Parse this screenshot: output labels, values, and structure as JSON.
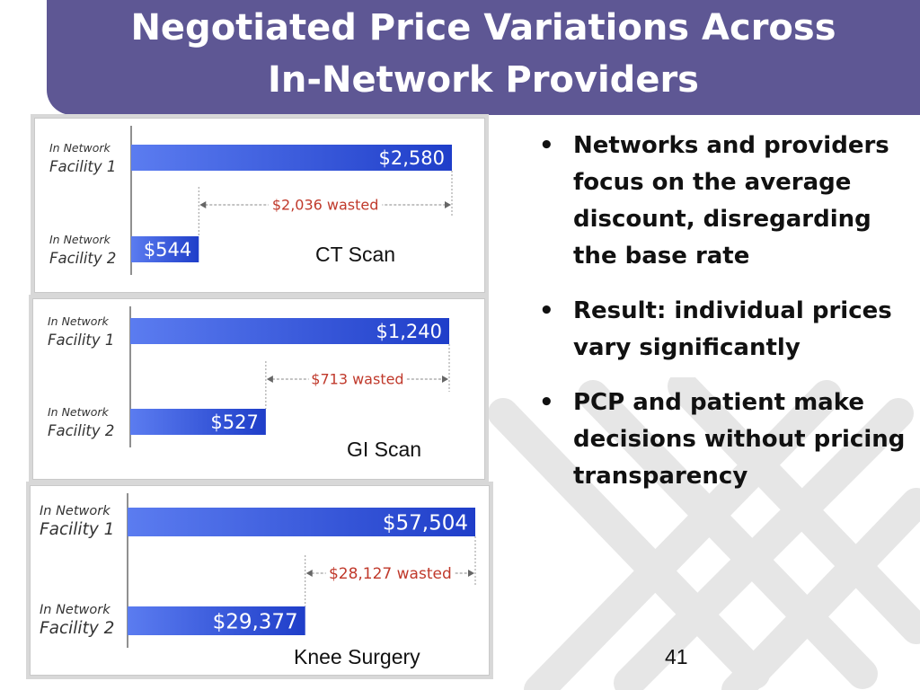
{
  "slide": {
    "title_line1": "Negotiated Price Variations Across",
    "title_line2": "In-Network Providers",
    "page_number": "41",
    "bullet_char": "•",
    "bullets": [
      "Networks and providers focus on the average discount, disregarding the base rate",
      "Result: individual prices vary significantly",
      "PCP and patient make decisions without pricing transparency"
    ]
  },
  "colors": {
    "title_bar": "#5e5794",
    "bar_light": "#5b7cf0",
    "bar_dark": "#1f3ec9",
    "wasted_text": "#c0392b"
  },
  "chart_data": [
    {
      "type": "bar",
      "caption": "CT Scan",
      "categories": [
        "In Network Facility 1",
        "In Network Facility 2"
      ],
      "category_lines": [
        [
          "In Network",
          "Facility 1"
        ],
        [
          "In Network",
          "Facility 2"
        ]
      ],
      "values": [
        2580,
        544
      ],
      "value_labels": [
        "$2,580",
        "$544"
      ],
      "annotation": "$2,036 wasted"
    },
    {
      "type": "bar",
      "caption": "GI Scan",
      "categories": [
        "In Network Facility 1",
        "In Network Facility 2"
      ],
      "category_lines": [
        [
          "In Network",
          "Facility 1"
        ],
        [
          "In Network",
          "Facility 2"
        ]
      ],
      "values": [
        1240,
        527
      ],
      "value_labels": [
        "$1,240",
        "$527"
      ],
      "annotation": "$713 wasted"
    },
    {
      "type": "bar",
      "caption": "Knee Surgery",
      "categories": [
        "In Network Facility 1",
        "In Network Facility 2"
      ],
      "category_lines": [
        [
          "In Network",
          "Facility 1"
        ],
        [
          "In Network",
          "Facility 2"
        ]
      ],
      "values": [
        57504,
        29377
      ],
      "value_labels": [
        "$57,504",
        "$29,377"
      ],
      "annotation": "$28,127 wasted"
    }
  ]
}
